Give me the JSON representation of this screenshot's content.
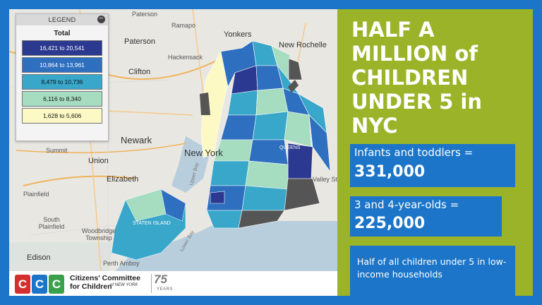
{
  "legend": {
    "header": "LEGEND",
    "title": "Total",
    "close_glyph": "−",
    "items": [
      {
        "range": "16,421 to 20,541",
        "color": "#2b3990"
      },
      {
        "range": "10,864 to 13,961",
        "color": "#2e6fbf"
      },
      {
        "range": "8,479 to 10,736",
        "color": "#39a7c9"
      },
      {
        "range": "6,116 to 8,340",
        "color": "#a6dcc0"
      },
      {
        "range": "1,628 to 5,606",
        "color": "#fcf9c5"
      }
    ]
  },
  "map": {
    "labels": {
      "paterson": "Paterson",
      "ramapo": "Ramapo",
      "yonkers": "Yonkers",
      "new_rochelle": "New Rochelle",
      "hackensack": "Hackensack",
      "clifton": "Clifton",
      "newark": "Newark",
      "new_york": "New York",
      "summit": "Summit",
      "union": "Union",
      "elizabeth": "Elizabeth",
      "plainfield": "Plainfield",
      "south_plainfield": "South Plainfield",
      "woodbridge": "Woodbridge Township",
      "edison": "Edison",
      "perth_amboy": "Perth Amboy",
      "staten_island": "STATEN ISLAND",
      "queens": "QUEENS",
      "upper_bay": "Upper Bay",
      "lower_bay": "Lower Bay",
      "valley_stream": "Valley Stre"
    }
  },
  "headline": "HALF A MILLION of CHILDREN UNDER 5 in NYC",
  "stats": {
    "infants_label": "Infants and toddlers =",
    "infants_value": "331,000",
    "preschool_label": "3 and 4-year-olds =",
    "preschool_value": "225,000",
    "low_income_note": "Half of all children under 5 in low-income households"
  },
  "footer": {
    "letters": [
      "C",
      "C",
      "C"
    ],
    "letter_colors": [
      "#d32f2f",
      "#1c75c8",
      "#3aa14a"
    ],
    "org_line1": "Citizens' Committee",
    "org_line2": "for Children",
    "org_sub": "of NEW YORK",
    "anniversary": "75",
    "anniversary_label": "YEARS"
  }
}
